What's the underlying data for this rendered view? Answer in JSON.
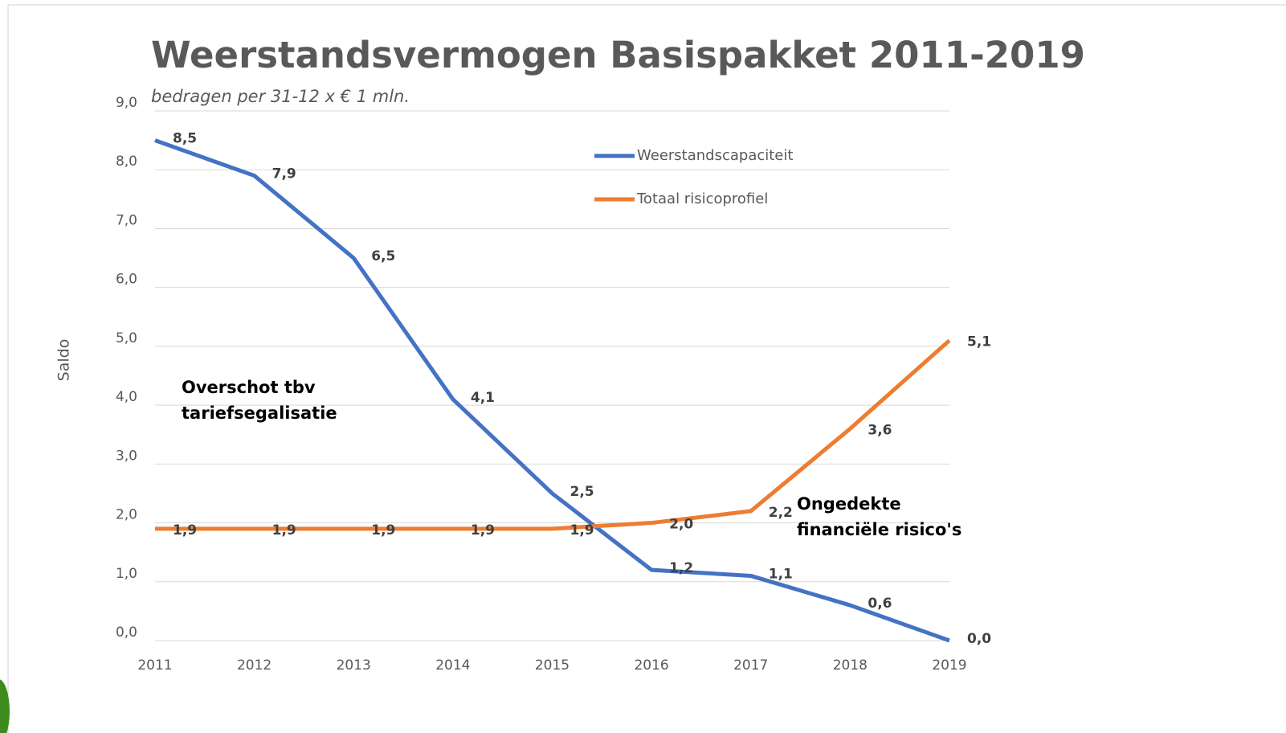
{
  "chart_data": {
    "type": "line",
    "title": "Weerstandsvermogen Basispakket 2011-2019",
    "subtitle": "bedragen per 31-12 x € 1 mln.",
    "y_label": "Saldo",
    "categories": [
      "2011",
      "2012",
      "2013",
      "2014",
      "2015",
      "2016",
      "2017",
      "2018",
      "2019"
    ],
    "series": [
      {
        "name": "Weerstandscapaciteit",
        "color": "#4472c4",
        "values": [
          8.5,
          7.9,
          6.5,
          4.1,
          2.5,
          1.2,
          1.1,
          0.6,
          0.0
        ],
        "value_labels": [
          "8,5",
          "7,9",
          "6,5",
          "4,1",
          "2,5",
          "1,2",
          "1,1",
          "0,6",
          "0,0"
        ]
      },
      {
        "name": "Totaal risicoprofiel",
        "color": "#ed7d31",
        "values": [
          1.9,
          1.9,
          1.9,
          1.9,
          1.9,
          2.0,
          2.2,
          3.6,
          5.1
        ],
        "value_labels": [
          "1,9",
          "1,9",
          "1,9",
          "1,9",
          "1,9",
          "2,0",
          "2,2",
          "3,6",
          "5,1"
        ]
      }
    ],
    "ylim": [
      0,
      9
    ],
    "yticks": [
      {
        "value": 0,
        "label": "0,0"
      },
      {
        "value": 1,
        "label": "1,0"
      },
      {
        "value": 2,
        "label": "2,0"
      },
      {
        "value": 3,
        "label": "3,0"
      },
      {
        "value": 4,
        "label": "4,0"
      },
      {
        "value": 5,
        "label": "5,0"
      },
      {
        "value": 6,
        "label": "6,0"
      },
      {
        "value": 7,
        "label": "7,0"
      },
      {
        "value": 8,
        "label": "8,0"
      },
      {
        "value": 9,
        "label": "9,0"
      }
    ],
    "grid": true,
    "annotations": [
      {
        "lines": [
          "Overschot tbv",
          "tariefsegalisatie"
        ]
      },
      {
        "lines": [
          "Ongedekte",
          "financiële risico's"
        ]
      }
    ]
  }
}
